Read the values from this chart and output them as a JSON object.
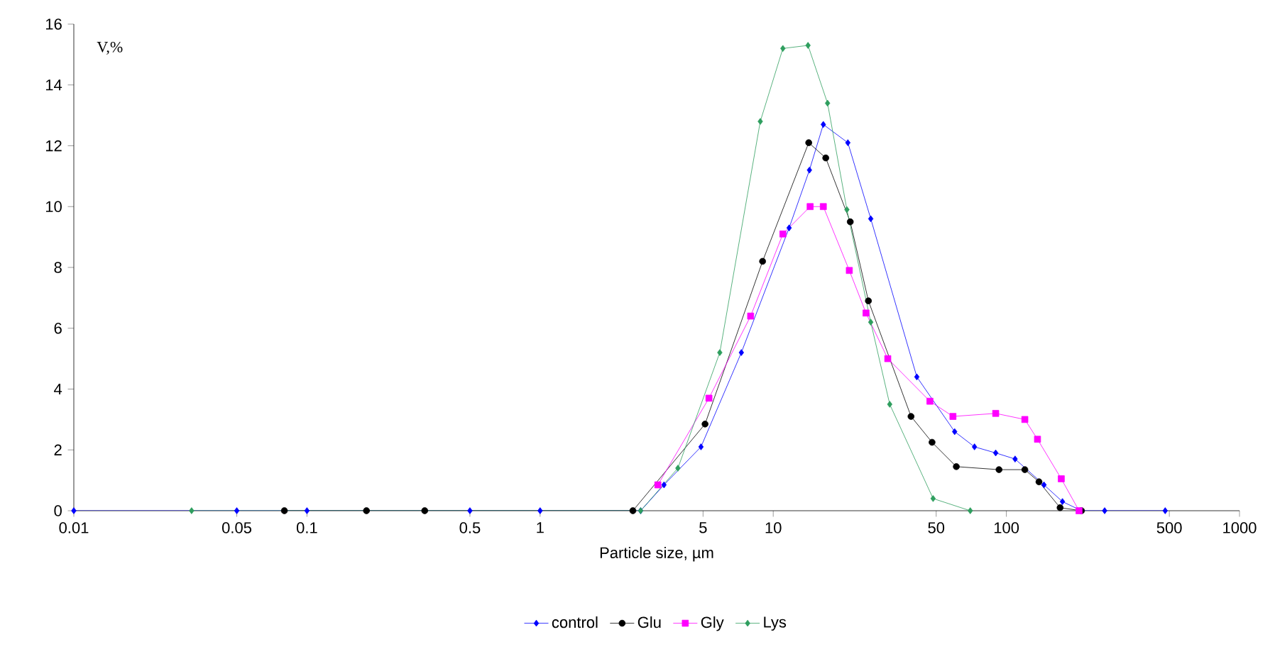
{
  "chart_data": {
    "type": "line",
    "xlabel": "Particle size, µm",
    "ylabel": "V,%",
    "log": "x",
    "xlim": [
      0.01,
      1000
    ],
    "xticks": [
      0.01,
      0.05,
      0.1,
      0.5,
      1,
      5,
      10,
      50,
      100,
      500,
      1000
    ],
    "ylim": [
      0,
      16
    ],
    "yticks": [
      0,
      2,
      4,
      6,
      8,
      10,
      12,
      14,
      16
    ],
    "grid": false,
    "legend": "bottom",
    "series": [
      {
        "name": "control",
        "color": "#0000ff",
        "marker": "diamond",
        "x": [
          0.01,
          0.05,
          0.1,
          0.5,
          1,
          2.7,
          3.4,
          4.9,
          7.3,
          11.7,
          14.3,
          16.4,
          20.9,
          26.2,
          41.3,
          60,
          73,
          90,
          109,
          145,
          174,
          210,
          264,
          480
        ],
        "values": [
          0,
          0,
          0,
          0,
          0,
          0,
          0.85,
          2.1,
          5.2,
          9.3,
          11.2,
          12.7,
          12.1,
          9.6,
          4.4,
          2.6,
          2.1,
          1.9,
          1.7,
          0.85,
          0.3,
          0,
          0,
          0
        ]
      },
      {
        "name": "Glu",
        "color": "#000000",
        "marker": "circle",
        "x": [
          0.08,
          0.18,
          0.32,
          2.5,
          5.1,
          9,
          14.2,
          16.8,
          21.4,
          25.6,
          39,
          48,
          61,
          93,
          120,
          138,
          170,
          210
        ],
        "values": [
          0,
          0,
          0,
          0,
          2.85,
          8.2,
          12.1,
          11.6,
          9.5,
          6.9,
          3.1,
          2.25,
          1.45,
          1.35,
          1.35,
          0.95,
          0.1,
          0
        ]
      },
      {
        "name": "Gly",
        "color": "#ff00ff",
        "marker": "square",
        "x": [
          3.2,
          5.3,
          8,
          11,
          14.4,
          16.4,
          21.2,
          25,
          31,
          47,
          59,
          90,
          120,
          136,
          172,
          205
        ],
        "values": [
          0.85,
          3.7,
          6.4,
          9.1,
          10,
          10,
          7.9,
          6.5,
          5,
          3.6,
          3.1,
          3.2,
          3,
          2.35,
          1.05,
          0
        ]
      },
      {
        "name": "Lys",
        "color": "#2e9e5e",
        "marker": "diamond",
        "x": [
          0.032,
          2.7,
          3.9,
          5.9,
          8.8,
          11,
          14.1,
          17.1,
          20.7,
          26.2,
          31.6,
          48.5,
          70
        ],
        "values": [
          0,
          0,
          1.4,
          5.2,
          12.8,
          15.2,
          15.3,
          13.4,
          9.9,
          6.2,
          3.5,
          0.4,
          0
        ]
      }
    ]
  }
}
